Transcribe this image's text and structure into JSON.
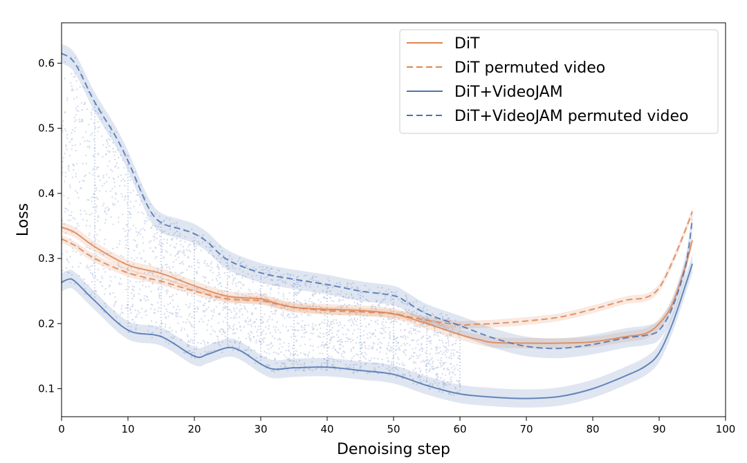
{
  "chart_data": {
    "type": "line",
    "title": "",
    "xlabel": "Denoising step",
    "ylabel": "Loss",
    "xlim": [
      0,
      100
    ],
    "ylim": [
      0.057,
      0.662
    ],
    "xticks": [
      0,
      10,
      20,
      30,
      40,
      50,
      60,
      70,
      80,
      90,
      100
    ],
    "yticks": [
      0.1,
      0.2,
      0.3,
      0.4,
      0.5,
      0.6
    ],
    "grid": false,
    "legend_position": "top-right",
    "colors": {
      "orange": "#dd8452",
      "blue": "#4c72b0",
      "scatter": "#c3cde6"
    },
    "series": [
      {
        "name": "DiT",
        "style": "solid",
        "color": "#dd8452",
        "x": [
          0,
          2,
          5,
          10,
          15,
          20,
          25,
          30,
          32,
          35,
          40,
          45,
          50,
          55,
          60,
          63,
          65,
          70,
          75,
          80,
          85,
          88,
          90,
          92,
          94,
          95
        ],
        "y": [
          0.348,
          0.34,
          0.318,
          0.29,
          0.277,
          0.258,
          0.242,
          0.238,
          0.232,
          0.225,
          0.222,
          0.22,
          0.215,
          0.2,
          0.183,
          0.175,
          0.171,
          0.17,
          0.17,
          0.172,
          0.18,
          0.185,
          0.2,
          0.23,
          0.29,
          0.328
        ],
        "band": 0.008
      },
      {
        "name": "DiT permuted video",
        "style": "dashed",
        "color": "#dd8452",
        "x": [
          0,
          2,
          5,
          10,
          15,
          20,
          25,
          30,
          35,
          40,
          45,
          50,
          55,
          60,
          62,
          65,
          70,
          75,
          80,
          85,
          88,
          90,
          92,
          94,
          95
        ],
        "y": [
          0.33,
          0.32,
          0.3,
          0.278,
          0.265,
          0.25,
          0.238,
          0.235,
          0.225,
          0.22,
          0.218,
          0.215,
          0.205,
          0.198,
          0.199,
          0.2,
          0.204,
          0.21,
          0.222,
          0.236,
          0.24,
          0.255,
          0.295,
          0.345,
          0.372
        ],
        "band": 0.006
      },
      {
        "name": "DiT+VideoJAM",
        "style": "solid",
        "color": "#4c72b0",
        "x": [
          0,
          1,
          2,
          5,
          10,
          15,
          20,
          22,
          25,
          27,
          30,
          32,
          35,
          40,
          45,
          50,
          55,
          60,
          65,
          70,
          75,
          80,
          85,
          88,
          90,
          92,
          94,
          95
        ],
        "y": [
          0.263,
          0.268,
          0.265,
          0.235,
          0.19,
          0.18,
          0.15,
          0.153,
          0.163,
          0.158,
          0.138,
          0.13,
          0.132,
          0.133,
          0.128,
          0.122,
          0.105,
          0.092,
          0.087,
          0.085,
          0.088,
          0.1,
          0.12,
          0.135,
          0.155,
          0.2,
          0.26,
          0.292
        ],
        "band": 0.014
      },
      {
        "name": "DiT+VideoJAM permuted video",
        "style": "dashed",
        "color": "#4c72b0",
        "x": [
          0,
          2,
          5,
          8,
          10,
          13,
          15,
          18,
          20,
          22,
          25,
          30,
          35,
          40,
          45,
          50,
          52,
          55,
          60,
          65,
          70,
          75,
          80,
          85,
          88,
          90,
          92,
          94,
          95
        ],
        "y": [
          0.615,
          0.6,
          0.54,
          0.49,
          0.45,
          0.38,
          0.355,
          0.345,
          0.338,
          0.325,
          0.298,
          0.278,
          0.268,
          0.26,
          0.25,
          0.243,
          0.233,
          0.215,
          0.197,
          0.178,
          0.165,
          0.162,
          0.168,
          0.178,
          0.182,
          0.19,
          0.225,
          0.29,
          0.36
        ],
        "band": 0.015
      }
    ],
    "scatter": {
      "x_range": [
        0,
        60
      ],
      "y_range": [
        0.11,
        0.62
      ],
      "dotted_guides_x": [
        5,
        10,
        15,
        20,
        25,
        30,
        35,
        40,
        45,
        50,
        55,
        60
      ]
    }
  }
}
